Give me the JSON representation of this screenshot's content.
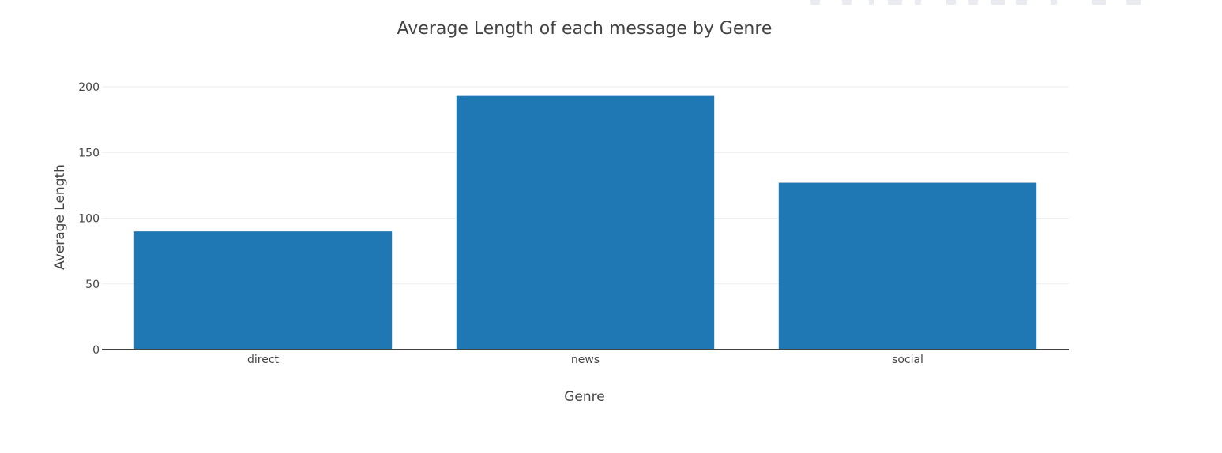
{
  "chart_data": {
    "type": "bar",
    "title": "Average Length of each message by Genre",
    "xlabel": "Genre",
    "ylabel": "Average Length",
    "categories": [
      "direct",
      "news",
      "social"
    ],
    "series": [
      {
        "values": [
          90,
          193,
          127
        ]
      }
    ],
    "ylim": [
      0,
      210
    ],
    "yticks": [
      0,
      50,
      100,
      150,
      200
    ],
    "grid": true,
    "legend": "none",
    "colors": {
      "bar": "#1f77b4",
      "grid": "#eeeeee",
      "axis": "#444444",
      "text": "#444444"
    }
  },
  "modebar": {
    "icons": [
      "camera-icon",
      "zoom-icon",
      "pan-icon",
      "box-select-icon",
      "lasso-icon",
      "zoom-in-icon",
      "zoom-out-icon",
      "autoscale-icon",
      "reset-axes-icon",
      "spike-lines-icon",
      "hover-closest-icon",
      "hover-compare-icon",
      "plotly-logo-icon"
    ]
  }
}
